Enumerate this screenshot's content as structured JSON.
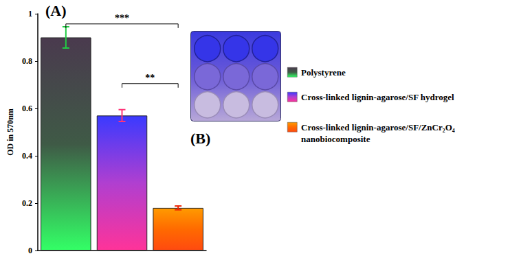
{
  "chart_data": {
    "type": "bar",
    "panel_labels": [
      "(A)",
      "(B)"
    ],
    "y_label": "OD in 570nm",
    "categories": [
      "Polystyrene",
      "Cross-linked lignin-agarose/SF hydrogel",
      "Cross-linked lignin-agarose/SF/ZnCr₂O₄ nanobiocomposite"
    ],
    "values": [
      0.9,
      0.57,
      0.18
    ],
    "errors": [
      0.045,
      0.025,
      0.008
    ],
    "colors": [
      "#4a3a4e",
      "#3a3aff",
      "#ff9a00"
    ],
    "ylim": [
      0,
      1
    ],
    "yticks": [
      0,
      0.2,
      0.4,
      0.6,
      0.8,
      1
    ],
    "grid": false,
    "tick_labels": "y",
    "legend": "right",
    "annotations": [
      {
        "text": "***",
        "from": 0,
        "to": 2,
        "y": 0.957
      },
      {
        "text": "**",
        "from": 1,
        "to": 2,
        "y": 0.705
      }
    ]
  }
}
